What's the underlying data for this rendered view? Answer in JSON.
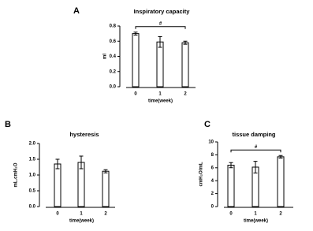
{
  "chart_data": [
    {
      "type": "bar",
      "panel": "A",
      "title": "Inspiratory capacity",
      "x_label": "time(week)",
      "y_label": "ml",
      "categories": [
        "0",
        "1",
        "2"
      ],
      "values": [
        0.7,
        0.59,
        0.58
      ],
      "errors": [
        0.02,
        0.07,
        0.02
      ],
      "ylim": [
        0,
        0.8
      ],
      "yticks": [
        {
          "value": 0,
          "label": "0.0"
        },
        0.2,
        0.4,
        0.6,
        0.8
      ],
      "annotation": "#",
      "color": "#ffffff"
    },
    {
      "type": "bar",
      "panel": "B",
      "title": "hysteresis",
      "x_label": "time(week)",
      "y_label": "mL.cmH₂O",
      "categories": [
        "0",
        "1",
        "2"
      ],
      "values": [
        1.35,
        1.4,
        1.12
      ],
      "errors": [
        0.15,
        0.2,
        0.05
      ],
      "ylim": [
        0,
        2
      ],
      "yticks": [
        {
          "value": 0,
          "label": "0.0"
        },
        0.5,
        {
          "value": 1,
          "label": "1.0"
        },
        1.5,
        {
          "value": 2,
          "label": "2.0"
        }
      ],
      "color": "#ffffff"
    },
    {
      "type": "bar",
      "panel": "C",
      "title": "tissue damping",
      "x_label": "time(week)",
      "y_label": "cmH₂O/mL",
      "categories": [
        "0",
        "1",
        "2"
      ],
      "values": [
        6.4,
        6.1,
        7.7
      ],
      "errors": [
        0.4,
        0.9,
        0.2
      ],
      "ylim": [
        0,
        10
      ],
      "yticks": [
        0,
        2,
        4,
        6,
        8,
        10
      ],
      "annotation": "#",
      "color": "#ffffff"
    }
  ]
}
